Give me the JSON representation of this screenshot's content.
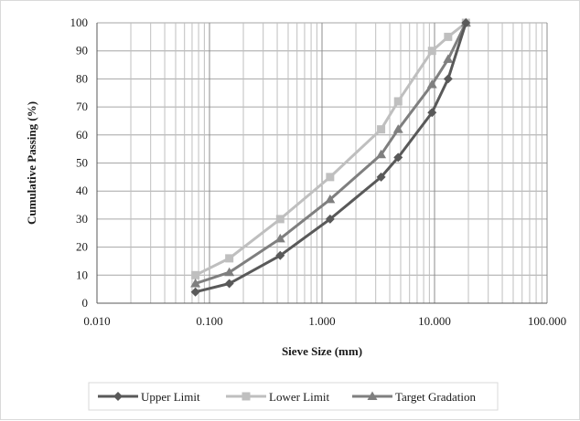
{
  "chart_data": {
    "type": "scatter",
    "xlabel": "Sieve Size (mm)",
    "ylabel": "Cumulative Passing (%)",
    "xscale": "log",
    "xlim": [
      0.01,
      100
    ],
    "ylim": [
      0,
      100
    ],
    "x_tick_labels": [
      "0.010",
      "0.100",
      "1.000",
      "10.000",
      "100.000"
    ],
    "y_tick_labels": [
      "0",
      "10",
      "20",
      "30",
      "40",
      "50",
      "60",
      "70",
      "80",
      "90",
      "100"
    ],
    "grid": true,
    "legend_position": "bottom",
    "series": [
      {
        "name": "Upper Limit",
        "color": "#595959",
        "marker": "diamond",
        "x": [
          0.075,
          0.15,
          0.425,
          1.18,
          3.35,
          4.75,
          9.5,
          13.2,
          19
        ],
        "y": [
          4,
          7,
          17,
          30,
          45,
          52,
          68,
          80,
          100
        ]
      },
      {
        "name": "Lower Limit",
        "color": "#bfbfbf",
        "marker": "square",
        "x": [
          0.075,
          0.15,
          0.425,
          1.18,
          3.35,
          4.75,
          9.5,
          13.2,
          19
        ],
        "y": [
          10,
          16,
          30,
          45,
          62,
          72,
          90,
          95,
          100
        ]
      },
      {
        "name": "Target Gradation",
        "color": "#7f7f7f",
        "marker": "triangle",
        "x": [
          0.075,
          0.15,
          0.425,
          1.18,
          3.35,
          4.75,
          9.5,
          13.2,
          19
        ],
        "y": [
          7,
          11,
          23,
          37,
          53,
          62,
          78,
          87,
          100
        ]
      }
    ]
  }
}
